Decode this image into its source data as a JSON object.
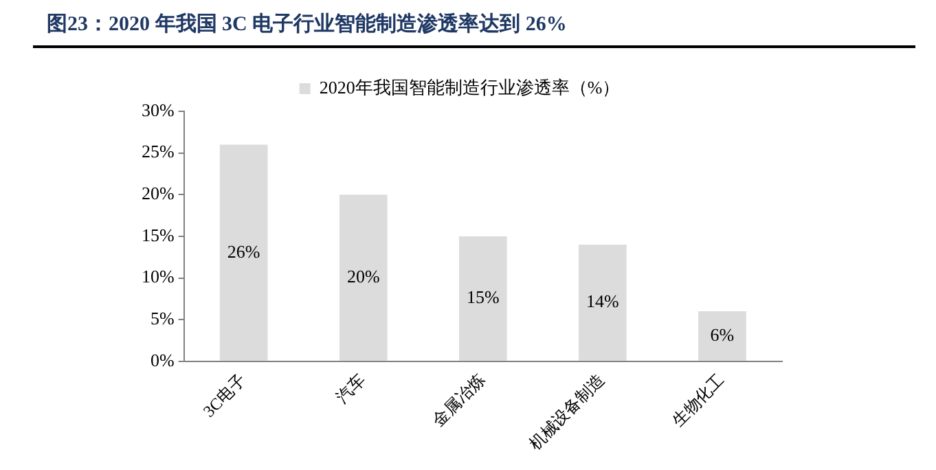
{
  "chart_data": {
    "type": "bar",
    "title": "图23：2020 年我国 3C 电子行业智能制造渗透率达到 26%",
    "categories": [
      "3C电子",
      "汽车",
      "金属冶炼",
      "机械设备制造",
      "生物化工"
    ],
    "series": [
      {
        "name": "2020年我国智能制造行业渗透率（%）",
        "color": "#dcdcdc",
        "values": [
          26,
          20,
          15,
          14,
          6
        ],
        "value_labels": [
          "26%",
          "20%",
          "15%",
          "14%",
          "6%"
        ]
      }
    ],
    "ylim": [
      0,
      30
    ],
    "yticks": [
      {
        "value": 0,
        "label": "0%"
      },
      {
        "value": 5,
        "label": "5%"
      },
      {
        "value": 10,
        "label": "10%"
      },
      {
        "value": 15,
        "label": "15%"
      },
      {
        "value": 20,
        "label": "20%"
      },
      {
        "value": 25,
        "label": "25%"
      },
      {
        "value": 30,
        "label": "30%"
      }
    ],
    "legend": "top",
    "grid": false
  }
}
